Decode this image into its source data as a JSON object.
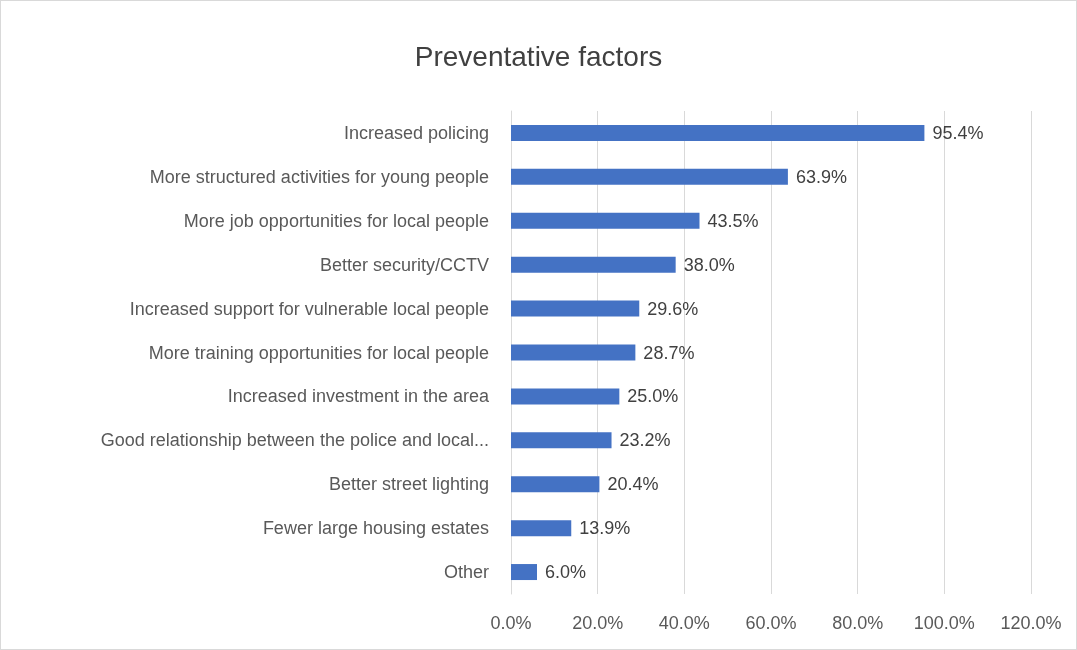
{
  "chart_data": {
    "type": "bar",
    "orientation": "horizontal",
    "title": "Preventative factors",
    "categories": [
      "Increased policing",
      "More structured activities for young people",
      "More job opportunities for local people",
      "Better security/CCTV",
      "Increased support for vulnerable local people",
      "More training opportunities for local people",
      "Increased investment in the area",
      "Good relationship between the police and local...",
      "Better street lighting",
      "Fewer large housing estates",
      "Other"
    ],
    "values": [
      95.4,
      63.9,
      43.5,
      38.0,
      29.6,
      28.7,
      25.0,
      23.2,
      20.4,
      13.9,
      6.0
    ],
    "value_labels": [
      "95.4%",
      "63.9%",
      "43.5%",
      "38.0%",
      "29.6%",
      "28.7%",
      "25.0%",
      "23.2%",
      "20.4%",
      "13.9%",
      "6.0%"
    ],
    "color": "#4472c4",
    "xlim": [
      0,
      120
    ],
    "xticks": [
      {
        "value": 0,
        "label": "0.0%"
      },
      {
        "value": 20,
        "label": "20.0%"
      },
      {
        "value": 40,
        "label": "40.0%"
      },
      {
        "value": 60,
        "label": "60.0%"
      },
      {
        "value": 80,
        "label": "80.0%"
      },
      {
        "value": 100,
        "label": "100.0%"
      },
      {
        "value": 120,
        "label": "120.0%"
      }
    ],
    "grid": "x"
  }
}
